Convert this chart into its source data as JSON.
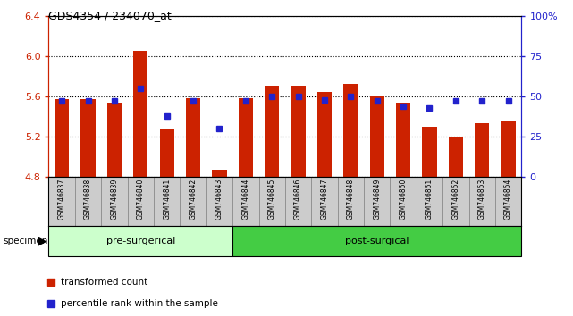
{
  "title": "GDS4354 / 234070_at",
  "samples": [
    "GSM746837",
    "GSM746838",
    "GSM746839",
    "GSM746840",
    "GSM746841",
    "GSM746842",
    "GSM746843",
    "GSM746844",
    "GSM746845",
    "GSM746846",
    "GSM746847",
    "GSM746848",
    "GSM746849",
    "GSM746850",
    "GSM746851",
    "GSM746852",
    "GSM746853",
    "GSM746854"
  ],
  "red_values": [
    5.57,
    5.57,
    5.54,
    6.05,
    5.27,
    5.58,
    4.87,
    5.58,
    5.71,
    5.71,
    5.64,
    5.72,
    5.61,
    5.54,
    5.3,
    5.2,
    5.33,
    5.35
  ],
  "blue_values": [
    47,
    47,
    47,
    55,
    38,
    47,
    30,
    47,
    50,
    50,
    48,
    50,
    47,
    44,
    43,
    47,
    47,
    47
  ],
  "pre_surgical_count": 7,
  "post_surgical_count": 11,
  "ylim_left": [
    4.8,
    6.4
  ],
  "ylim_right": [
    0,
    100
  ],
  "yticks_left": [
    4.8,
    5.2,
    5.6,
    6.0,
    6.4
  ],
  "yticks_right": [
    0,
    25,
    50,
    75,
    100
  ],
  "ytick_labels_right": [
    "0",
    "25",
    "50",
    "75",
    "100%"
  ],
  "bar_color": "#cc2200",
  "blue_color": "#2222cc",
  "pre_surgical_color": "#ccffcc",
  "post_surgical_color": "#44cc44",
  "label_area_color": "#cccccc",
  "bar_width": 0.55,
  "legend_red_label": "transformed count",
  "legend_blue_label": "percentile rank within the sample",
  "pre_label": "pre-surgerical",
  "post_label": "post-surgical"
}
